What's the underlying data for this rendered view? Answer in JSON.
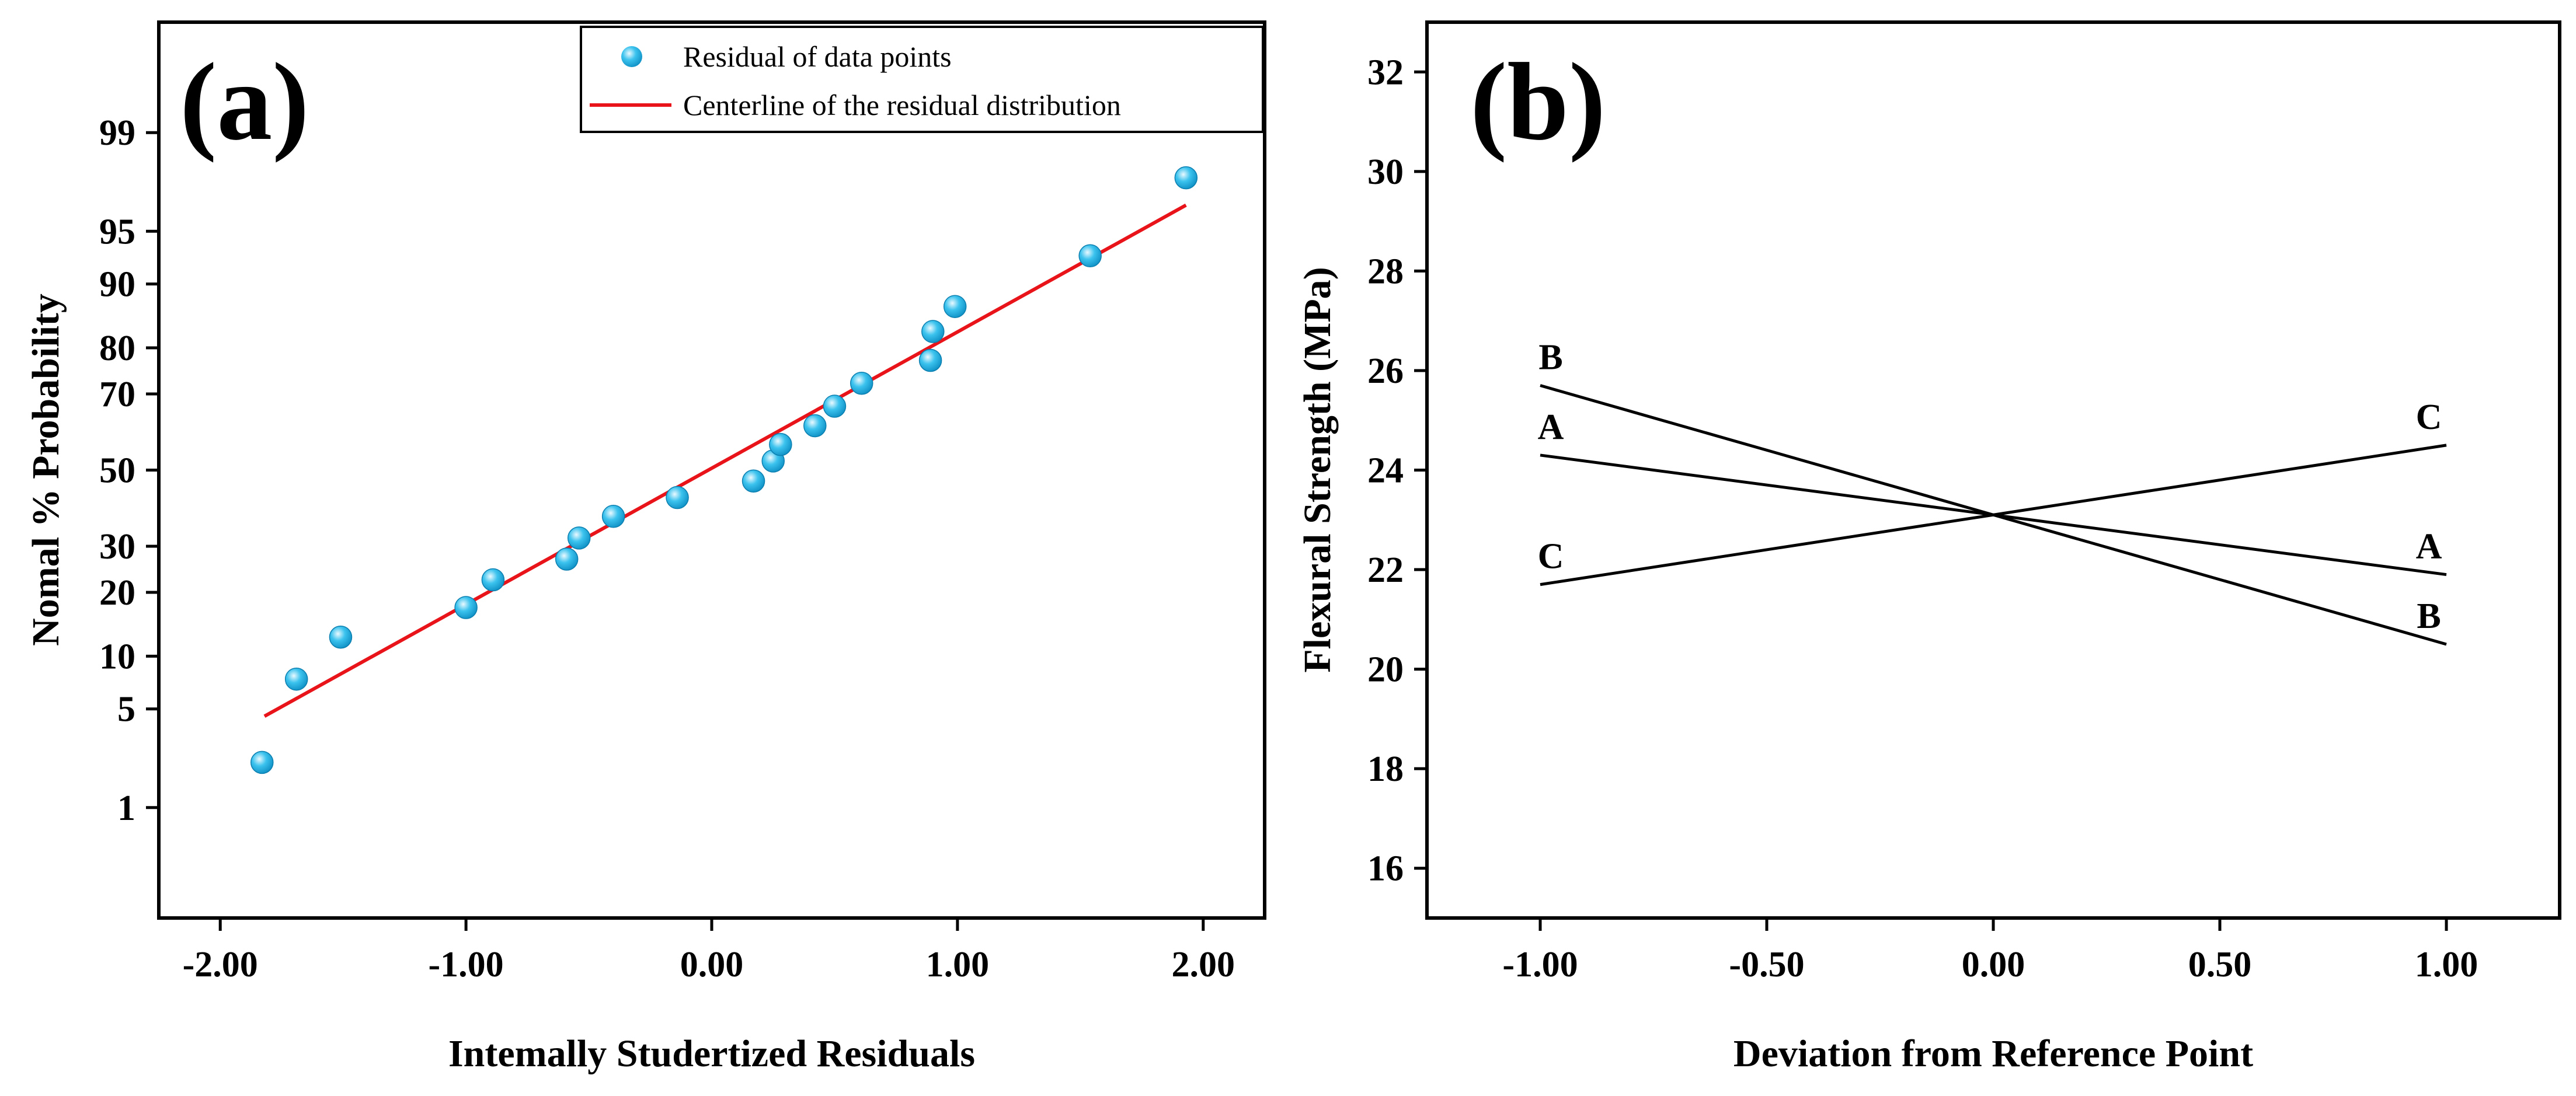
{
  "chart_data": [
    {
      "panel": "(a)",
      "type": "scatter",
      "xlabel": "Intemally Studertized Residuals",
      "ylabel": "Nomal % Probability",
      "xlim": [
        -2.25,
        2.25
      ],
      "x_ticks": [
        -2.0,
        -1.0,
        0.0,
        1.0,
        2.0
      ],
      "x_tick_labels": [
        "-2.00",
        "-1.00",
        "0.00",
        "1.00",
        "2.00"
      ],
      "y_scale": "normal-probability",
      "ylim": [
        0.1,
        99.9
      ],
      "y_ticks": [
        1,
        5,
        10,
        20,
        30,
        50,
        70,
        80,
        90,
        95,
        99
      ],
      "y_tick_labels": [
        "1",
        "5",
        "10",
        "20",
        "30",
        "50",
        "70",
        "80",
        "90",
        "95",
        "99"
      ],
      "legend": {
        "position": "top-right",
        "entries": [
          "Residual of data points",
          "Centerline of the residual distribution"
        ]
      },
      "series": [
        {
          "name": "Residual of data points",
          "kind": "points",
          "color": "#1EB4E8",
          "points": [
            {
              "x": -1.83,
              "y": 2.2
            },
            {
              "x": -1.69,
              "y": 7.5
            },
            {
              "x": -1.51,
              "y": 12.5
            },
            {
              "x": -1.0,
              "y": 17.2
            },
            {
              "x": -0.89,
              "y": 22.5
            },
            {
              "x": -0.59,
              "y": 27.0
            },
            {
              "x": -0.54,
              "y": 32.0
            },
            {
              "x": -0.4,
              "y": 37.5
            },
            {
              "x": -0.14,
              "y": 42.5
            },
            {
              "x": 0.17,
              "y": 47.0
            },
            {
              "x": 0.25,
              "y": 52.5
            },
            {
              "x": 0.28,
              "y": 57.0
            },
            {
              "x": 0.42,
              "y": 62.0
            },
            {
              "x": 0.5,
              "y": 67.0
            },
            {
              "x": 0.61,
              "y": 72.5
            },
            {
              "x": 0.89,
              "y": 77.5
            },
            {
              "x": 0.9,
              "y": 83.0
            },
            {
              "x": 0.99,
              "y": 87.0
            },
            {
              "x": 1.54,
              "y": 93.0
            },
            {
              "x": 1.93,
              "y": 97.8
            }
          ]
        },
        {
          "name": "Centerline of the residual distribution",
          "kind": "line",
          "color": "#E8141A",
          "points": [
            {
              "x": -1.82,
              "y": 4.5
            },
            {
              "x": 1.93,
              "y": 96.6
            }
          ]
        }
      ]
    },
    {
      "panel": "(b)",
      "type": "line",
      "xlabel": "Deviation from Reference Point",
      "ylabel": "Flexural Strength (MPa)",
      "xlim": [
        -1.25,
        1.25
      ],
      "ylim": [
        15,
        33
      ],
      "x_ticks": [
        -1.0,
        -0.5,
        0.0,
        0.5,
        1.0
      ],
      "x_tick_labels": [
        "-1.00",
        "-0.50",
        "0.00",
        "0.50",
        "1.00"
      ],
      "y_ticks": [
        16,
        18,
        20,
        22,
        24,
        26,
        28,
        30,
        32
      ],
      "y_tick_labels": [
        "16",
        "18",
        "20",
        "22",
        "24",
        "26",
        "28",
        "30",
        "32"
      ],
      "series": [
        {
          "name": "A",
          "color": "#000000",
          "x": [
            -1.0,
            1.0
          ],
          "values": [
            24.3,
            21.9
          ]
        },
        {
          "name": "B",
          "color": "#000000",
          "x": [
            -1.0,
            1.0
          ],
          "values": [
            25.7,
            20.5
          ]
        },
        {
          "name": "C",
          "color": "#000000",
          "x": [
            -1.0,
            1.0
          ],
          "values": [
            21.7,
            24.5
          ]
        }
      ]
    }
  ]
}
